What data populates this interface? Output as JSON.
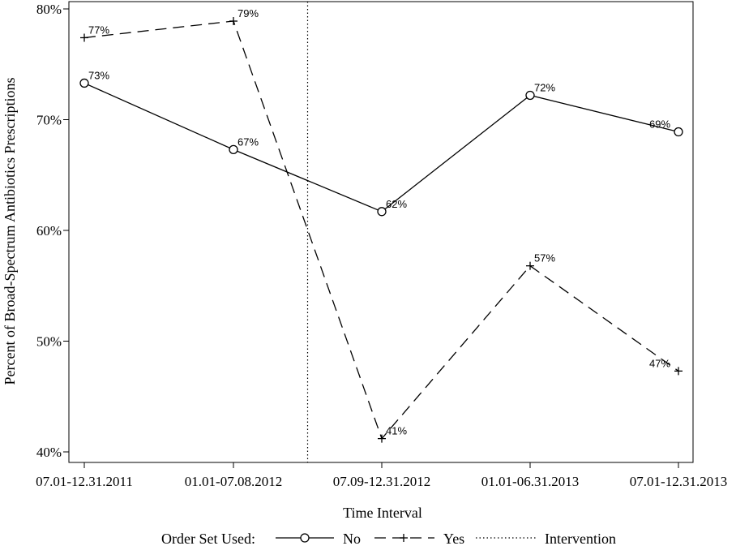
{
  "chart_data": {
    "type": "line",
    "title": "",
    "xlabel": "Time Interval",
    "ylabel": "Percent of Broad-Spectrum Antibiotics Prescriptions",
    "categories": [
      "07.01-12.31.2011",
      "01.01-07.08.2012",
      "07.09-12.31.2012",
      "01.01-06.31.2013",
      "07.01-12.31.2013"
    ],
    "y_ticks": [
      "40%",
      "50%",
      "60%",
      "70%",
      "80%"
    ],
    "ylim": [
      0.4,
      0.8
    ],
    "grid": false,
    "series": [
      {
        "name": "No",
        "style": "solid",
        "marker": "circle",
        "values": [
          0.733,
          0.673,
          0.617,
          0.722,
          0.689
        ],
        "labels": [
          "73%",
          "67%",
          "62%",
          "72%",
          "69%"
        ]
      },
      {
        "name": "Yes",
        "style": "dashed",
        "marker": "plus",
        "values": [
          0.774,
          0.789,
          0.412,
          0.568,
          0.473
        ],
        "labels": [
          "77%",
          "79%",
          "41%",
          "57%",
          "47%"
        ]
      }
    ],
    "reference_line": {
      "name": "Intervention",
      "style": "dotted",
      "x_position": 1.5
    },
    "legend": {
      "title": "Order Set Used:",
      "placement": "bottom"
    },
    "colors": {
      "line": "#000000",
      "background": "#ffffff"
    }
  }
}
